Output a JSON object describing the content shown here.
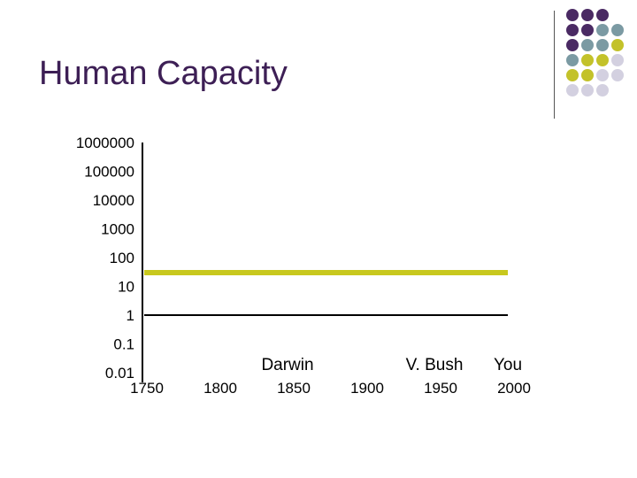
{
  "slide": {
    "title": "Human Capacity"
  },
  "decor": {
    "dot_colors": {
      "purple": "#4a2a63",
      "teal": "#7b9aa3",
      "olive": "#c3c22a",
      "lavender": "#d3d0e0"
    },
    "dot_pattern": [
      [
        "purple",
        "purple",
        "purple",
        null
      ],
      [
        "purple",
        "purple",
        "teal",
        "teal"
      ],
      [
        "purple",
        "teal",
        "teal",
        "olive"
      ],
      [
        "teal",
        "olive",
        "olive",
        "lavender"
      ],
      [
        "olive",
        "olive",
        "lavender",
        "lavender"
      ],
      [
        "lavender",
        "lavender",
        "lavender",
        null
      ]
    ],
    "rule_color": "#555555"
  },
  "chart_data": {
    "type": "line",
    "title": "",
    "xlabel": "",
    "ylabel": "",
    "y_scale": "log",
    "y_ticks": [
      "1000000",
      "100000",
      "10000",
      "1000",
      "100",
      "10",
      "1",
      "0.1",
      "0.01"
    ],
    "y_tick_values": [
      1000000,
      100000,
      10000,
      1000,
      100,
      10,
      1,
      0.1,
      0.01
    ],
    "x_ticks": [
      "1750",
      "1800",
      "1850",
      "1900",
      "1950",
      "2000"
    ],
    "x_tick_values": [
      1750,
      1800,
      1850,
      1900,
      1950,
      2000
    ],
    "series": [
      {
        "x": [
          1750,
          2000
        ],
        "y": [
          1,
          1
        ],
        "color": "#000000"
      },
      {
        "x": [
          1750,
          2000
        ],
        "y": [
          30,
          30
        ],
        "color": "#c8c81e"
      }
    ],
    "annotations": [
      {
        "text": "Darwin",
        "x": 1850
      },
      {
        "text": "V. Bush",
        "x": 1950
      },
      {
        "text": "You",
        "x": 2000
      }
    ],
    "grid": false
  }
}
